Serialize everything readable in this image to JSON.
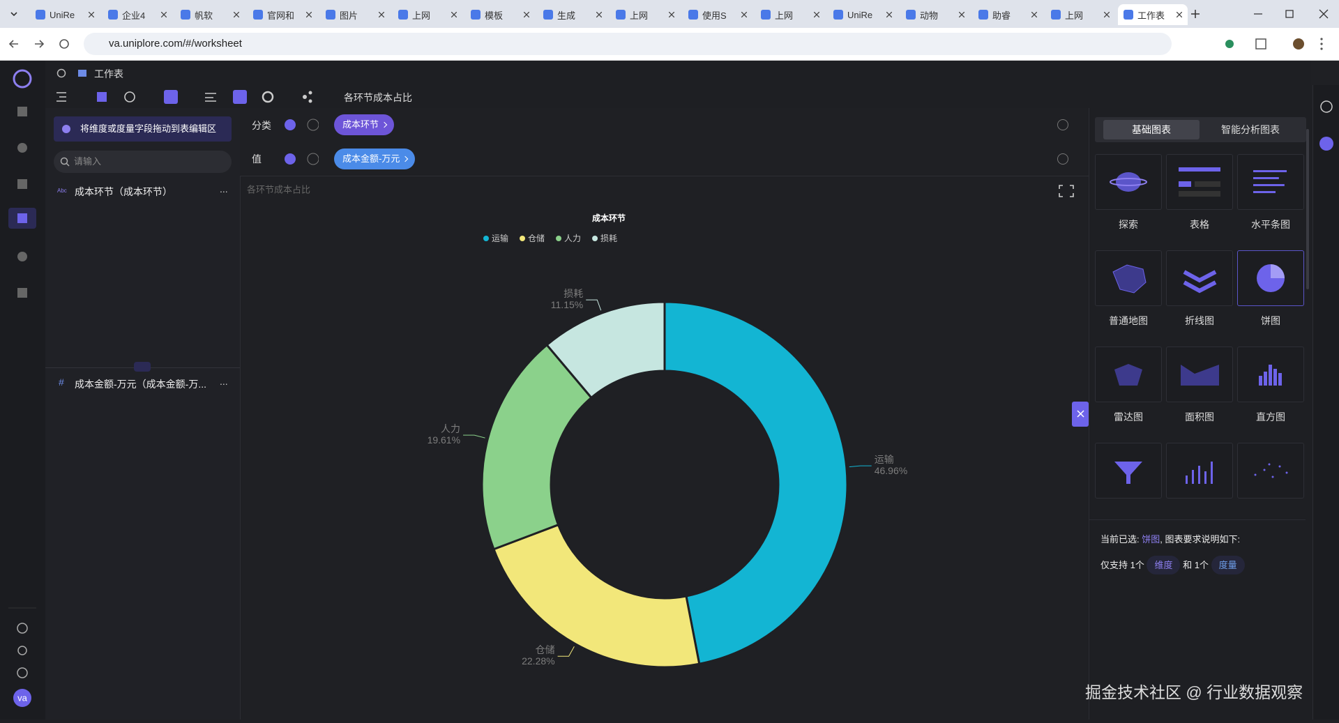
{
  "browser": {
    "tabs": [
      "UniRe",
      "企业4",
      "帆软",
      "官网和",
      "图片",
      "上网",
      "模板",
      "生成",
      "上网",
      "使用S",
      "上网",
      "UniRe",
      "动物",
      "助睿",
      "上网",
      "工作表"
    ],
    "url": "va.uniplore.com/#/worksheet"
  },
  "app": {
    "breadcrumb": "工作表",
    "avatar": "va"
  },
  "left_panel": {
    "hint": "将维度或度量字段拖动到表编辑区",
    "search_placeholder": "请输入",
    "dimension_badge": "Abc",
    "dimension_field": "成本环节（成本环节）",
    "measure_badge": "#",
    "measure_field": "成本金额-万元（成本金额-万...",
    "more": "..."
  },
  "shelf": {
    "category_label": "分类",
    "category_pill": "成本环节",
    "value_label": "值",
    "value_pill": "成本金额-万元"
  },
  "chart_data": {
    "type": "pie",
    "title": "各环节成本占比",
    "legend_title": "成本环节",
    "categories": [
      "运输",
      "仓储",
      "人力",
      "损耗"
    ],
    "values": [
      46.96,
      22.28,
      19.61,
      11.15
    ],
    "value_labels": [
      "46.96%",
      "22.28%",
      "19.61%",
      "11.15%"
    ],
    "colors": [
      "#13b5d3",
      "#f2e77a",
      "#8bd18b",
      "#c6e6e0"
    ]
  },
  "right_panel": {
    "tabs": [
      "基础图表",
      "智能分析图表"
    ],
    "chart_types": [
      "探索",
      "表格",
      "水平条图",
      "普通地图",
      "折线图",
      "饼图",
      "雷达图",
      "面积图",
      "直方图"
    ],
    "selected_prefix": "当前已选:",
    "selected": "饼图",
    "selected_suffix": ", 图表要求说明如下:",
    "requirement": [
      "仅支持 1个",
      "维度",
      "和 1个",
      "度量"
    ]
  },
  "watermark": "掘金技术社区 @ 行业数据观察"
}
